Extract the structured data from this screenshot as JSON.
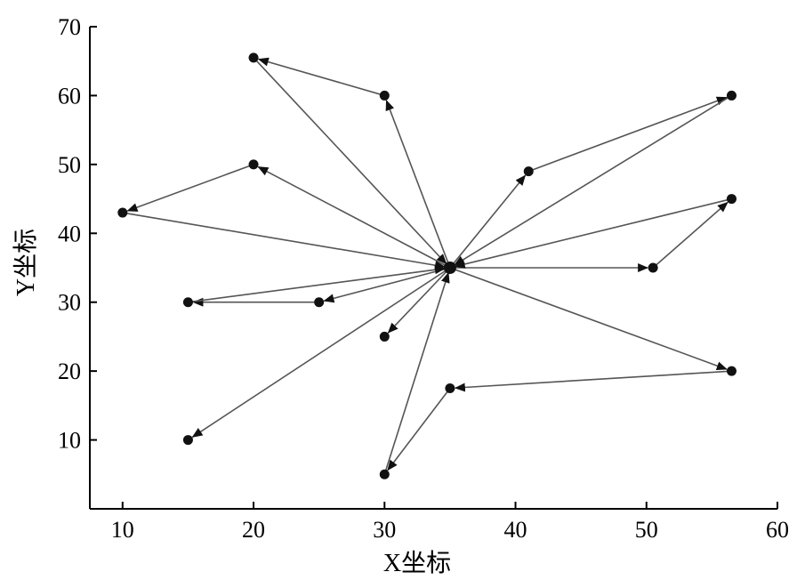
{
  "chart_data": {
    "type": "line",
    "title": "",
    "xlabel": "X坐标",
    "ylabel": "Y坐标",
    "xlim": [
      7.5,
      60
    ],
    "ylim": [
      0,
      70
    ],
    "xticks": [
      10,
      20,
      30,
      40,
      50,
      60
    ],
    "yticks": [
      10,
      20,
      30,
      40,
      50,
      60,
      70
    ],
    "grid": false,
    "legend": "none",
    "colors": {
      "line": "#555555",
      "marker": "#111111",
      "axis": "#000000"
    },
    "depot": {
      "x": 35,
      "y": 35
    },
    "points": [
      {
        "x": 20,
        "y": 65.5
      },
      {
        "x": 30,
        "y": 60
      },
      {
        "x": 56.5,
        "y": 60
      },
      {
        "x": 20,
        "y": 50
      },
      {
        "x": 41,
        "y": 49
      },
      {
        "x": 56.5,
        "y": 45
      },
      {
        "x": 10,
        "y": 43
      },
      {
        "x": 50.5,
        "y": 35
      },
      {
        "x": 15,
        "y": 30
      },
      {
        "x": 25,
        "y": 30
      },
      {
        "x": 30,
        "y": 25
      },
      {
        "x": 56.5,
        "y": 20
      },
      {
        "x": 35,
        "y": 17.5
      },
      {
        "x": 15,
        "y": 10
      },
      {
        "x": 30,
        "y": 5
      }
    ],
    "routes": [
      {
        "path": [
          [
            35,
            35
          ],
          [
            30,
            60
          ],
          [
            20,
            65.5
          ],
          [
            35,
            35
          ]
        ]
      },
      {
        "path": [
          [
            35,
            35
          ],
          [
            20,
            50
          ],
          [
            10,
            43
          ],
          [
            35,
            35
          ]
        ]
      },
      {
        "path": [
          [
            35,
            35
          ],
          [
            25,
            30
          ],
          [
            15,
            30
          ],
          [
            35,
            35
          ]
        ]
      },
      {
        "path": [
          [
            35,
            35
          ],
          [
            15,
            10
          ]
        ]
      },
      {
        "path": [
          [
            35,
            35
          ],
          [
            30,
            25
          ]
        ]
      },
      {
        "path": [
          [
            35,
            35
          ],
          [
            41,
            49
          ],
          [
            56.5,
            60
          ],
          [
            35,
            35
          ]
        ]
      },
      {
        "path": [
          [
            35,
            35
          ],
          [
            50.5,
            35
          ],
          [
            56.5,
            45
          ],
          [
            35,
            35
          ]
        ]
      },
      {
        "path": [
          [
            35,
            35
          ],
          [
            56.5,
            20
          ],
          [
            35,
            17.5
          ],
          [
            30,
            5
          ],
          [
            35,
            35
          ]
        ]
      }
    ]
  }
}
